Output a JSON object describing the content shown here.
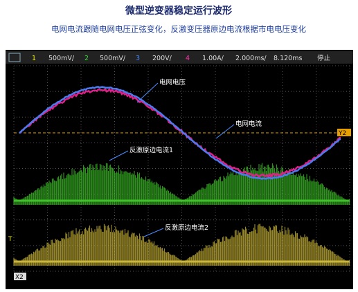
{
  "header": {
    "title": "微型逆变器稳定运行波形",
    "subtitle": "电网电流跟随电网电压正弦变化，反激变压器原边电流根据市电电压变化"
  },
  "toolbar": {
    "ch1": "1",
    "ch1_scale": "500mV/",
    "ch2": "2",
    "ch2_scale": "500mV/",
    "ch3": "3",
    "ch3_scale": "200V/",
    "ch4": "4",
    "ch4_scale": "1.00A/",
    "timebase": "2.000ms/",
    "delay": "8.120ms",
    "status": "停止"
  },
  "annotations": {
    "grid_voltage": "电网电压",
    "grid_current": "电网电流",
    "flyback_current_1": "反激原边电流1",
    "flyback_current_2": "反激原边电流2"
  },
  "markers": {
    "y2": "Y2",
    "x2": "X2",
    "trigger": "T"
  }
}
